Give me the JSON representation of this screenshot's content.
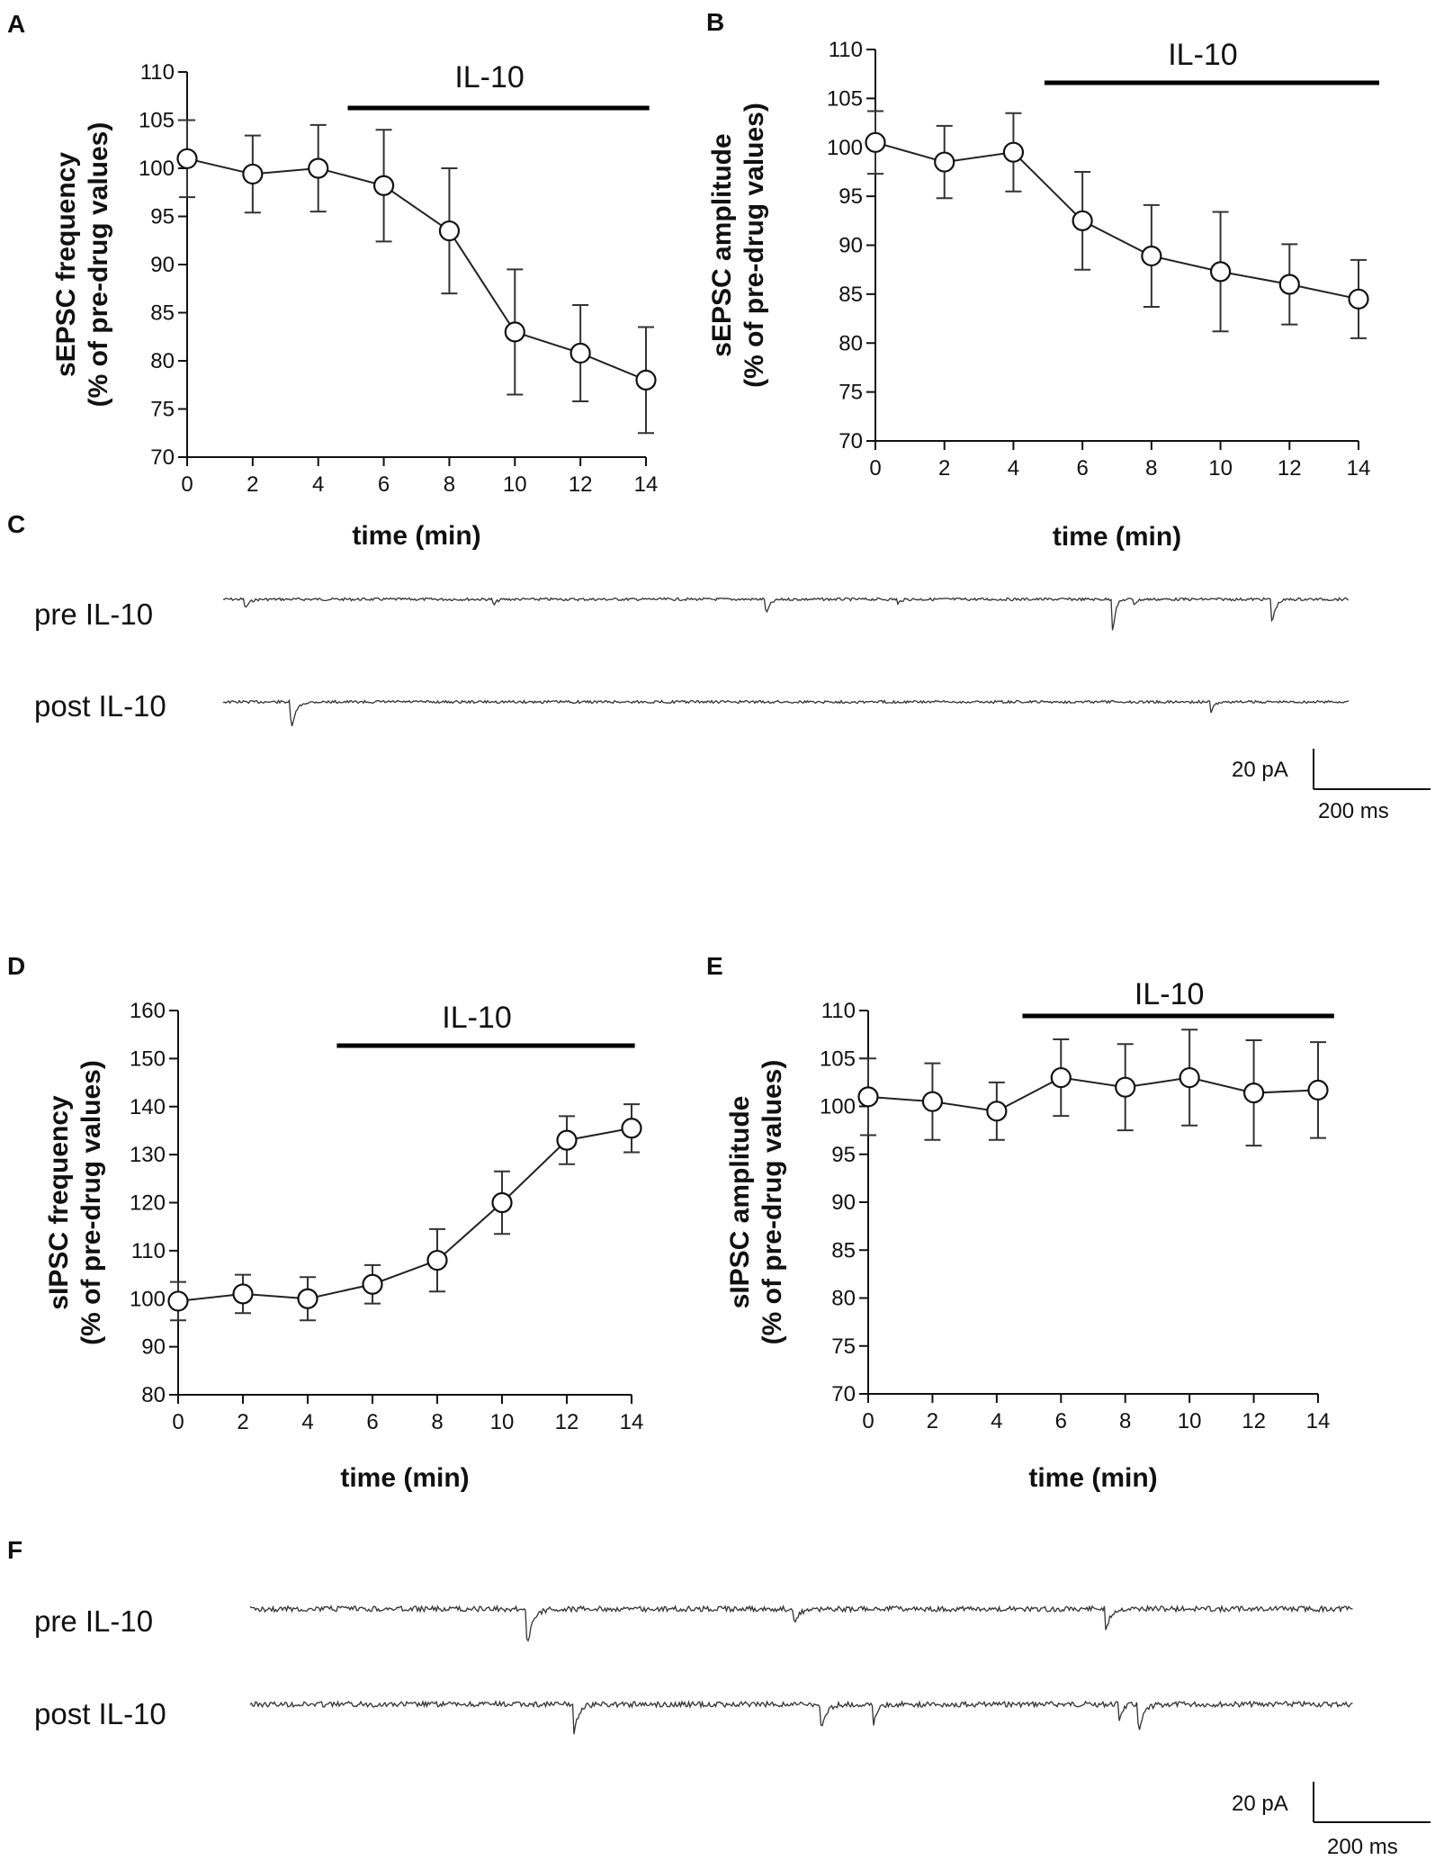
{
  "chart_data": [
    {
      "panel": "A",
      "type": "line",
      "xlabel": "time (min)",
      "ylabel_line1": "sEPSC frequency",
      "ylabel_line2": "(% of pre-drug values)",
      "x": [
        0,
        2,
        4,
        6,
        8,
        10,
        12,
        14
      ],
      "values": [
        101,
        99.4,
        100,
        98.2,
        93.5,
        83,
        80.8,
        78
      ],
      "errors": [
        4,
        4,
        4.5,
        5.8,
        6.5,
        6.5,
        5,
        5.5
      ],
      "xlim": [
        0,
        14
      ],
      "xticks": [
        "0",
        "2",
        "4",
        "6",
        "8",
        "10",
        "12",
        "14"
      ],
      "ylim": [
        70,
        110
      ],
      "yticks": [
        "70",
        "75",
        "80",
        "85",
        "90",
        "95",
        "100",
        "105",
        "110"
      ],
      "drug_label": "IL-10",
      "drug_range": [
        4.9,
        14.1
      ]
    },
    {
      "panel": "B",
      "type": "line",
      "xlabel": "time (min)",
      "ylabel_line1": "sEPSC amplitude",
      "ylabel_line2": "(% of pre-drug values)",
      "x": [
        0,
        2,
        4,
        6,
        8,
        10,
        12,
        14
      ],
      "values": [
        100.5,
        98.5,
        99.5,
        92.5,
        88.9,
        87.3,
        86,
        84.5
      ],
      "errors": [
        3.2,
        3.7,
        4,
        5,
        5.2,
        6.1,
        4.1,
        4
      ],
      "xlim": [
        0,
        14
      ],
      "xticks": [
        "0",
        "2",
        "4",
        "6",
        "8",
        "10",
        "12",
        "14"
      ],
      "ylim": [
        70,
        110
      ],
      "yticks": [
        "70",
        "75",
        "80",
        "85",
        "90",
        "95",
        "100",
        "105",
        "110"
      ],
      "drug_label": "IL-10",
      "drug_range": [
        4.9,
        14.6
      ]
    },
    {
      "panel": "D",
      "type": "line",
      "xlabel": "time (min)",
      "ylabel_line1": "sIPSC frequency",
      "ylabel_line2": "(% of pre-drug values)",
      "x": [
        0,
        2,
        4,
        6,
        8,
        10,
        12,
        14
      ],
      "values": [
        99.5,
        101,
        100,
        103,
        108,
        120,
        133,
        135.5
      ],
      "errors": [
        4,
        4,
        4.5,
        4,
        6.5,
        6.5,
        5,
        5
      ],
      "xlim": [
        0,
        14
      ],
      "xticks": [
        "0",
        "2",
        "4",
        "6",
        "8",
        "10",
        "12",
        "14"
      ],
      "ylim": [
        80,
        160
      ],
      "yticks": [
        "80",
        "90",
        "100",
        "110",
        "120",
        "130",
        "140",
        "150",
        "160"
      ],
      "drug_label": "IL-10",
      "drug_range": [
        4.9,
        14.1
      ]
    },
    {
      "panel": "E",
      "type": "line",
      "xlabel": "time (min)",
      "ylabel_line1": "sIPSC amplitude",
      "ylabel_line2": "(% of pre-drug values)",
      "x": [
        0,
        2,
        4,
        6,
        8,
        10,
        12,
        14
      ],
      "values": [
        101,
        100.5,
        99.5,
        103,
        102,
        103,
        101.4,
        101.7
      ],
      "errors": [
        4,
        4,
        3,
        4,
        4.5,
        5,
        5.5,
        5
      ],
      "xlim": [
        0,
        14
      ],
      "xticks": [
        "0",
        "2",
        "4",
        "6",
        "8",
        "10",
        "12",
        "14"
      ],
      "ylim": [
        70,
        110
      ],
      "yticks": [
        "70",
        "75",
        "80",
        "85",
        "90",
        "95",
        "100",
        "105",
        "110"
      ],
      "drug_label": "IL-10",
      "drug_range": [
        4.8,
        14.5
      ]
    }
  ],
  "panel_C": {
    "letter": "C",
    "pre_label": "pre IL-10",
    "post_label": "post IL-10",
    "scale_y": "20 pA",
    "scale_x": "200 ms"
  },
  "panel_F": {
    "letter": "F",
    "pre_label": "pre IL-10",
    "post_label": "post IL-10",
    "scale_y": "20 pA",
    "scale_x": "200 ms"
  }
}
